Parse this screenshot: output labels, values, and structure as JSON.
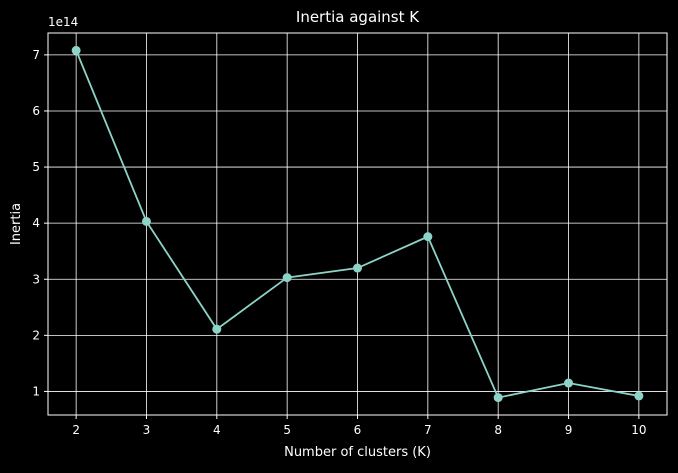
{
  "chart_data": {
    "type": "line",
    "title": "Inertia against K",
    "xlabel": "Number of clusters (K)",
    "ylabel": "Inertia",
    "y_offset_label": "1e14",
    "x": [
      2,
      3,
      4,
      5,
      6,
      7,
      8,
      9,
      10
    ],
    "series": [
      {
        "values": [
          7.08,
          4.03,
          2.11,
          3.03,
          3.2,
          3.76,
          0.89,
          1.15,
          0.92
        ]
      }
    ],
    "x_ticks": [
      2,
      3,
      4,
      5,
      6,
      7,
      8,
      9,
      10
    ],
    "y_ticks": [
      1,
      2,
      3,
      4,
      5,
      6,
      7
    ],
    "xlim": [
      1.6,
      10.4
    ],
    "ylim": [
      0.58,
      7.39
    ],
    "grid": true,
    "line_color": "#8dd3c7",
    "background": "#000000",
    "grid_color": "#ffffff"
  }
}
